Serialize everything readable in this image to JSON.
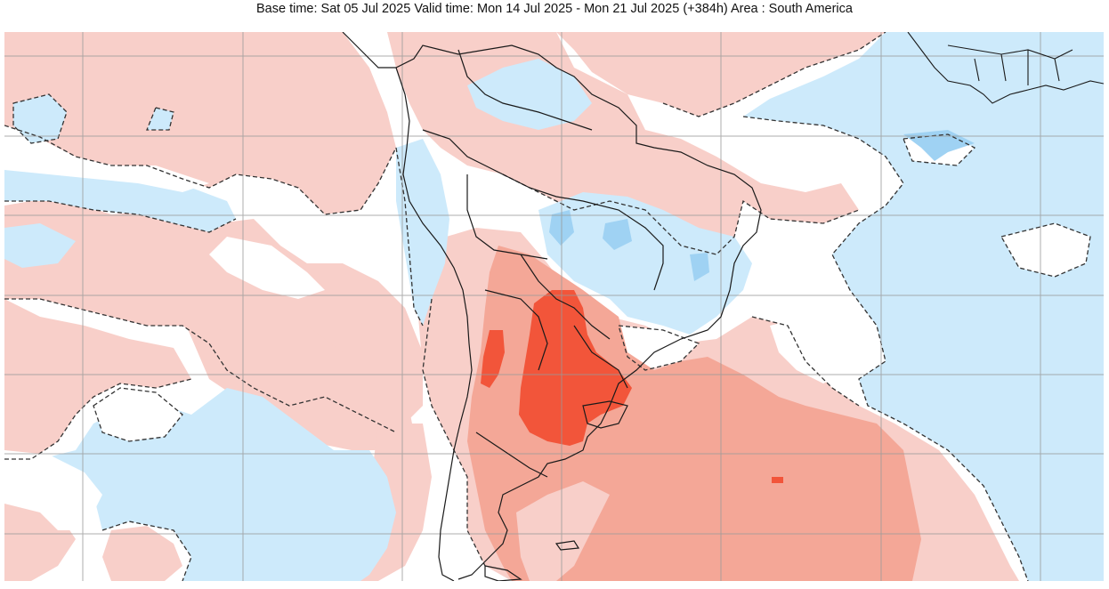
{
  "header": {
    "title": "Base time: Sat 05 Jul 2025 Valid time: Mon 14 Jul 2025 - Mon 21 Jul 2025 (+384h) Area : South America"
  },
  "map": {
    "region": "South America",
    "colors": {
      "cold_light": "#cdeafb",
      "cold_medium": "#9fd2f3",
      "warm_light": "#f8cfc9",
      "warm_medium": "#f4a797",
      "warm_strong": "#f2553a",
      "grid": "#9a9a9a",
      "coast": "#1a1a1a"
    }
  }
}
